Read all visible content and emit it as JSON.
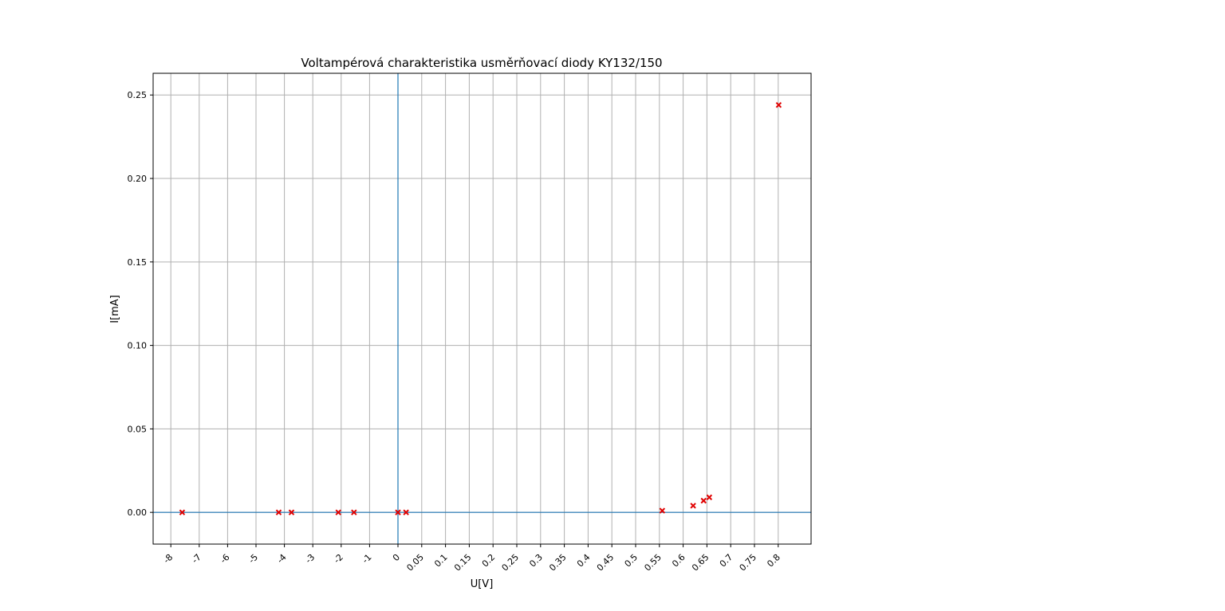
{
  "chart_data": {
    "type": "scatter",
    "title": "Voltampérová charakteristika usměrňovací diody KY132/150",
    "xlabel": "U[V]",
    "ylabel": "I[mA]",
    "x_scale": "piecewise: negative region 1 V per tick, positive region 0.05 V per tick",
    "x_ticks": [
      "-8",
      "-7",
      "-6",
      "-5",
      "-4",
      "-3",
      "-2",
      "-1",
      "0",
      "0.05",
      "0.1",
      "0.15",
      "0.2",
      "0.25",
      "0.3",
      "0.35",
      "0.4",
      "0.45",
      "0.5",
      "0.55",
      "0.6",
      "0.65",
      "0.7",
      "0.75",
      "0.8"
    ],
    "y_ticks": [
      "0.00",
      "0.05",
      "0.10",
      "0.15",
      "0.20",
      "0.25"
    ],
    "ylim": [
      -0.019,
      0.263
    ],
    "grid": true,
    "reference_lines": {
      "x": 0,
      "y": 0,
      "color": "#1f77b4"
    },
    "series": [
      {
        "marker": "x",
        "color": "#e00000",
        "points": [
          {
            "x": -7.6,
            "y": 0.0
          },
          {
            "x": -4.2,
            "y": 0.0
          },
          {
            "x": -3.75,
            "y": 0.0
          },
          {
            "x": -2.1,
            "y": 0.0
          },
          {
            "x": -1.55,
            "y": 0.0
          },
          {
            "x": 0.0,
            "y": 0.0
          },
          {
            "x": 0.017,
            "y": 0.0
          },
          {
            "x": 0.556,
            "y": 0.001
          },
          {
            "x": 0.621,
            "y": 0.004
          },
          {
            "x": 0.643,
            "y": 0.007
          },
          {
            "x": 0.655,
            "y": 0.009
          },
          {
            "x": 0.801,
            "y": 0.244
          }
        ]
      }
    ]
  }
}
